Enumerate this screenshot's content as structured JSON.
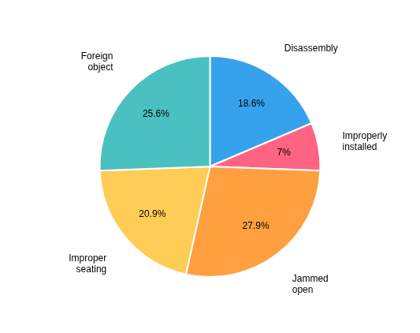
{
  "chart_data": {
    "type": "pie",
    "categories": [
      "Disassembly",
      "Improperly\ninstalled",
      "Jammed\nopen",
      "Improper\nseating",
      "Foreign\nobject"
    ],
    "values": [
      18.6,
      7.0,
      27.9,
      20.9,
      25.6
    ],
    "value_labels": [
      "18.6%",
      "7%",
      "27.9%",
      "20.9%",
      "25.6%"
    ],
    "data_labels": true
  }
}
